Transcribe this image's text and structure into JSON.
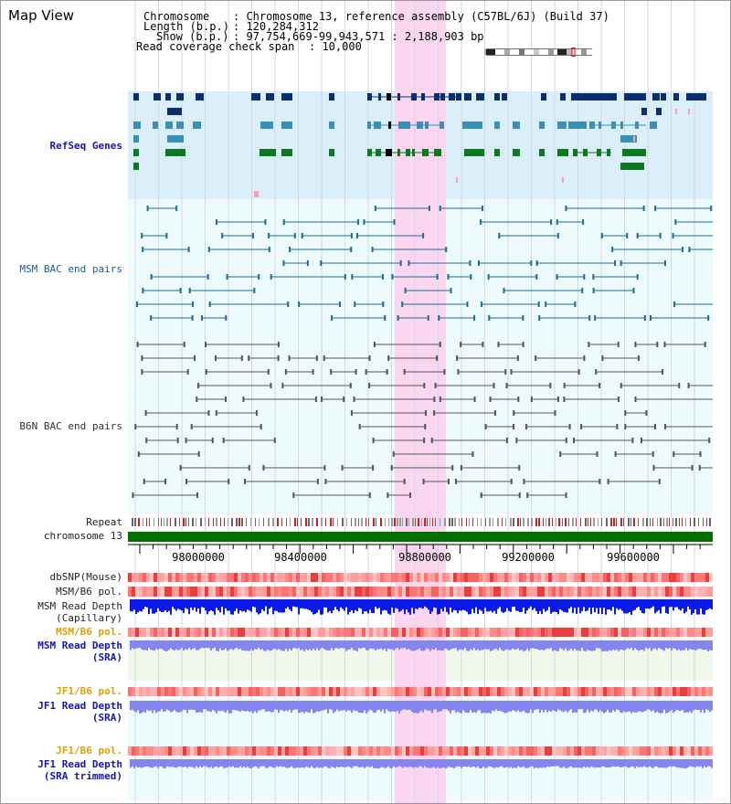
{
  "view": {
    "title": "Map View",
    "chromosome_key": "Chromosome",
    "chromosome_value": ": Chromosome 13, reference assembly (C57BL/6J) (Build 37)",
    "length_key": "Length (b.p.)",
    "length_value": ": 120,284,312",
    "show_key": "Show (b.p.)",
    "show_value": ": 97,754,669-99,943,571 : 2,188,903 bp",
    "coverage_key": "Read coverage check span",
    "coverage_value": ": 10,000"
  },
  "tracks": {
    "refseq": "RefSeq Genes",
    "msm_bac": "MSM BAC end pairs",
    "b6n_bac": "B6N BAC end pairs",
    "repeat": "Repeat",
    "chromosome": "chromosome 13",
    "dbsnp": "dbSNP(Mouse)",
    "msm_b6_pol_1": "MSM/B6 pol.",
    "msm_depth_cap_1": "MSM Read Depth",
    "msm_depth_cap_2": "(Capillary)",
    "msm_b6_pol_2": "MSM/B6 pol.",
    "msm_depth_sra_1": "MSM Read Depth",
    "msm_depth_sra_2": "(SRA)",
    "jf1_b6_pol_1": "JF1/B6 pol.",
    "jf1_depth_sra_1": "JF1 Read Depth",
    "jf1_depth_sra_2": "(SRA)",
    "jf1_b6_pol_2": "JF1/B6 pol.",
    "jf1_depth_trim_1": "JF1 Read Depth",
    "jf1_depth_trim_2": "(SRA trimmed)"
  },
  "axis": {
    "ticks": [
      "98000000",
      "98400000",
      "98800000",
      "99200000",
      "99600000"
    ]
  },
  "colors": {
    "refseq_bg": "#dbeffa",
    "bac_bg": "#eefbfc",
    "highlight": "#fad6f0",
    "chromosome_bar": "#007000",
    "refseq_dark": "#0b2f6e",
    "refseq_mid": "#3a8fb7",
    "refseq_green": "#0b7a1e",
    "msm_line": "#1e6d8f",
    "b6n_line": "#555555",
    "label_blue": "#1515b5",
    "label_orange": "#e0a000",
    "depth_blue": "#0a18e8",
    "depth_light": "#8585f0"
  }
}
